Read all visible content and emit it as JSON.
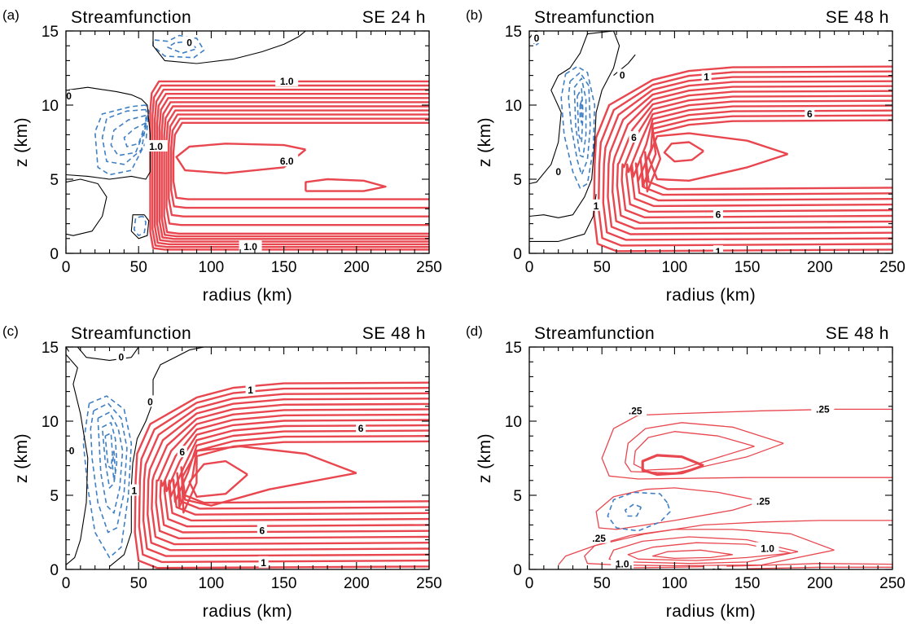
{
  "figure": {
    "panel_titles": [
      "Streamfunction",
      "Streamfunction",
      "Streamfunction",
      "Streamfunction"
    ]
  },
  "chart_data": [
    {
      "type": "contour",
      "panel_label": "(a)",
      "title": "Streamfunction",
      "subtitle": "SE 24 h",
      "xlabel": "radius (km)",
      "ylabel": "z (km)",
      "xlim": [
        0,
        250
      ],
      "ylim": [
        0,
        15
      ],
      "xticks": [
        "0",
        "50",
        "100",
        "150",
        "200",
        "250"
      ],
      "yticks": [
        "0",
        "5",
        "10",
        "15"
      ],
      "contour_labels": [
        {
          "text": "0",
          "x": 85,
          "y": 14.2
        },
        {
          "text": "0",
          "x": 2,
          "y": 10.6
        },
        {
          "text": "1.0",
          "x": 152,
          "y": 11.6
        },
        {
          "text": "1.0",
          "x": 62,
          "y": 7.2
        },
        {
          "text": "6.0",
          "x": 152,
          "y": 6.2
        },
        {
          "text": "1.0",
          "x": 127,
          "y": 0.45
        }
      ],
      "colors": {
        "positive": "#e8474f",
        "negative": "#3f7fc4",
        "zero": "#000000"
      }
    },
    {
      "type": "contour",
      "panel_label": "(b)",
      "title": "Streamfunction",
      "subtitle": "SE 48 h",
      "xlabel": "radius (km)",
      "ylabel": "z (km)",
      "xlim": [
        0,
        250
      ],
      "ylim": [
        0,
        15
      ],
      "xticks": [
        "0",
        "50",
        "100",
        "150",
        "200",
        "250"
      ],
      "yticks": [
        "0",
        "5",
        "10",
        "15"
      ],
      "contour_labels": [
        {
          "text": "0",
          "x": 5,
          "y": 14.5
        },
        {
          "text": "0",
          "x": 64,
          "y": 12.0
        },
        {
          "text": "1",
          "x": 122,
          "y": 11.9
        },
        {
          "text": "6",
          "x": 193,
          "y": 9.4
        },
        {
          "text": "6",
          "x": 72,
          "y": 7.8
        },
        {
          "text": "0",
          "x": 20,
          "y": 5.5
        },
        {
          "text": "1",
          "x": 46,
          "y": 3.2
        },
        {
          "text": "6",
          "x": 130,
          "y": 2.6
        },
        {
          "text": "1",
          "x": 130,
          "y": 0.1
        }
      ],
      "colors": {
        "positive": "#e8474f",
        "negative": "#3f7fc4",
        "zero": "#000000"
      }
    },
    {
      "type": "contour",
      "panel_label": "(c)",
      "title": "Streamfunction",
      "subtitle": "SE 48 h",
      "xlabel": "radius (km)",
      "ylabel": "z (km)",
      "xlim": [
        0,
        250
      ],
      "ylim": [
        0,
        15
      ],
      "xticks": [
        "0",
        "50",
        "100",
        "150",
        "200",
        "250"
      ],
      "yticks": [
        "0",
        "5",
        "10",
        "15"
      ],
      "contour_labels": [
        {
          "text": "0",
          "x": 38,
          "y": 14.3
        },
        {
          "text": "0",
          "x": 58,
          "y": 11.3
        },
        {
          "text": "1",
          "x": 127,
          "y": 12.1
        },
        {
          "text": "6",
          "x": 203,
          "y": 9.5
        },
        {
          "text": "6",
          "x": 80,
          "y": 7.9
        },
        {
          "text": "0",
          "x": 4,
          "y": 8.0
        },
        {
          "text": "1",
          "x": 47,
          "y": 5.3
        },
        {
          "text": "6",
          "x": 135,
          "y": 2.6
        },
        {
          "text": "1",
          "x": 136,
          "y": 0.45
        }
      ],
      "colors": {
        "positive": "#e8474f",
        "negative": "#3f7fc4",
        "zero": "#000000"
      }
    },
    {
      "type": "contour",
      "panel_label": "(d)",
      "title": "Streamfunction",
      "subtitle": "SE 48 h",
      "xlabel": "radius (km)",
      "ylabel": "z (km)",
      "xlim": [
        0,
        250
      ],
      "ylim": [
        0,
        15
      ],
      "xticks": [
        "0",
        "50",
        "100",
        "150",
        "200",
        "250"
      ],
      "yticks": [
        "0",
        "5",
        "10",
        "15"
      ],
      "contour_labels": [
        {
          "text": ".25",
          "x": 73,
          "y": 10.7
        },
        {
          "text": ".25",
          "x": 202,
          "y": 10.8
        },
        {
          "text": ".25",
          "x": 161,
          "y": 4.6
        },
        {
          "text": ".25",
          "x": 48,
          "y": 2.1
        },
        {
          "text": "1.0",
          "x": 164,
          "y": 1.4
        },
        {
          "text": "1.0",
          "x": 64,
          "y": 0.35
        },
        {
          "text": ".25",
          "x": 128,
          "y": -0.2
        }
      ],
      "colors": {
        "positive": "#e8474f",
        "negative": "#3f7fc4",
        "zero": "#000000"
      }
    }
  ]
}
